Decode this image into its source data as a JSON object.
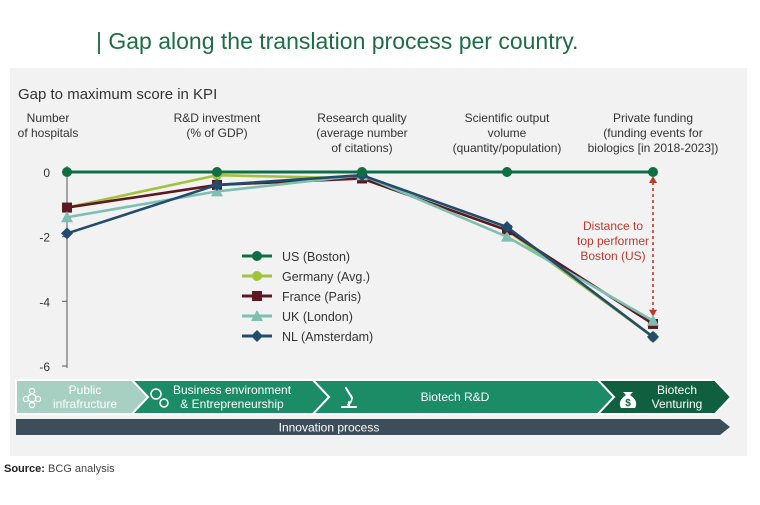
{
  "title": "| Gap along the translation process per country.",
  "source_label": "Source:",
  "source_text": "BCG analysis",
  "colors": {
    "us": "#106e45",
    "germany": "#a3c23d",
    "france": "#5f1822",
    "uk": "#7dbfb1",
    "nl": "#224c6e",
    "annotation": "#c0392b",
    "band_light": "#a7d0c3",
    "band_mid": "#1b8c66",
    "band_dark": "#10603f",
    "process_bar": "#3b4e5a"
  },
  "chart_data": {
    "type": "line",
    "ylabel": "Gap to maximum score in KPI",
    "ylim": [
      -6,
      0
    ],
    "yticks": [
      0,
      -2,
      -4,
      -6
    ],
    "categories": [
      "Number\nof hospitals",
      "R&D investment\n(% of GDP)",
      "Research quality\n(average number\nof citations)",
      "Scientific output\nvolume\n(quantity/population)",
      "Private funding\n(funding events for\nbiologics [in 2018-2023])"
    ],
    "series": [
      {
        "name": "US (Boston)",
        "marker": "circle",
        "color": "#106e45",
        "values": [
          0,
          0,
          0,
          0,
          0
        ]
      },
      {
        "name": "Germany (Avg.)",
        "marker": "circle",
        "color": "#a3c23d",
        "values": [
          -1.1,
          -0.1,
          -0.2,
          -1.8,
          -5.1
        ]
      },
      {
        "name": "France (Paris)",
        "marker": "square",
        "color": "#5f1822",
        "values": [
          -1.1,
          -0.4,
          -0.2,
          -1.8,
          -4.7
        ]
      },
      {
        "name": "UK (London)",
        "marker": "triangle",
        "color": "#7dbfb1",
        "values": [
          -1.4,
          -0.6,
          -0.1,
          -2.0,
          -4.6
        ]
      },
      {
        "name": "NL (Amsterdam)",
        "marker": "diamond",
        "color": "#224c6e",
        "values": [
          -1.9,
          -0.4,
          -0.1,
          -1.7,
          -5.1
        ]
      }
    ],
    "annotation": {
      "text": "Distance to\ntop performer\nBoston (US)",
      "category_index": 4,
      "from": 0,
      "to": -4.6
    },
    "legend_position": "center"
  },
  "process": {
    "stages": [
      {
        "label": "Public\ninfrafructure",
        "icon": "network-icon"
      },
      {
        "label": "Business environment\n& Entrepreneurship",
        "icon": "gears-icon"
      },
      {
        "label": "Biotech R&D",
        "icon": "microscope-icon"
      },
      {
        "label": "Biotech\nVenturing",
        "icon": "money-bag-icon"
      }
    ],
    "bar_label": "Innovation process"
  }
}
